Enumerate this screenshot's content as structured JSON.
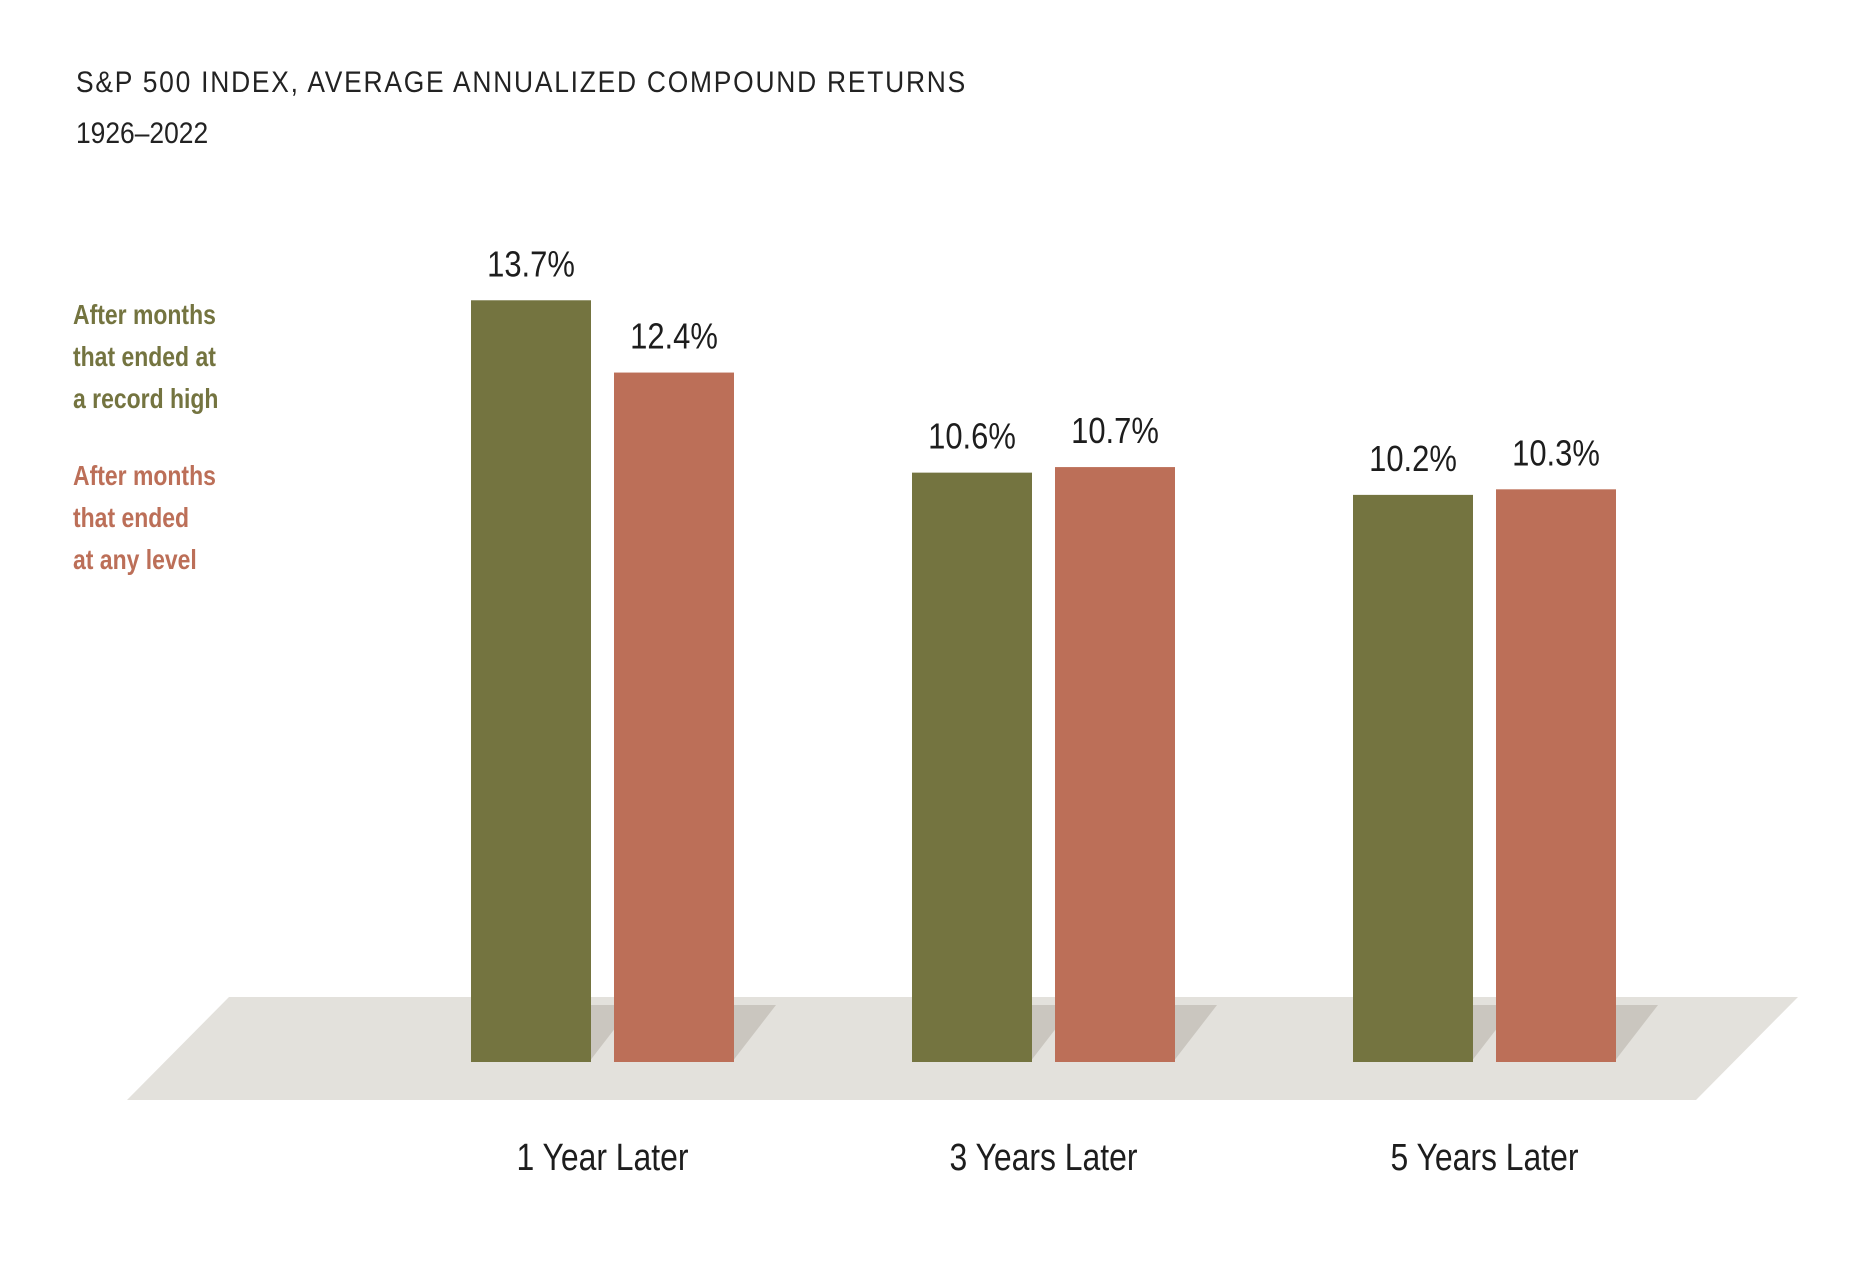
{
  "chart_data": {
    "type": "bar",
    "title": "S&P 500 INDEX, AVERAGE ANNUALIZED COMPOUND RETURNS",
    "subtitle": "1926–2022",
    "categories": [
      "1 Year Later",
      "3 Years Later",
      "5 Years Later"
    ],
    "series": [
      {
        "name": "After months that ended at a record high",
        "legend_lines": [
          "After months",
          "that ended at",
          "a record high"
        ],
        "values": [
          13.7,
          10.6,
          10.2
        ],
        "labels": [
          "13.7%",
          "10.6%",
          "10.2%"
        ],
        "color": "#747440"
      },
      {
        "name": "After months that ended at any level",
        "legend_lines": [
          "After months",
          "that ended",
          "at any level"
        ],
        "values": [
          12.4,
          10.7,
          10.3
        ],
        "labels": [
          "12.4%",
          "10.7%",
          "10.3%"
        ],
        "color": "#bc6f58"
      }
    ],
    "ylim": [
      0,
      15
    ],
    "xlabel": "",
    "ylabel": "",
    "grid": false,
    "legend_position": "left",
    "floor_color": "#e3e1dc",
    "shadow_color": "#cac6bf"
  }
}
